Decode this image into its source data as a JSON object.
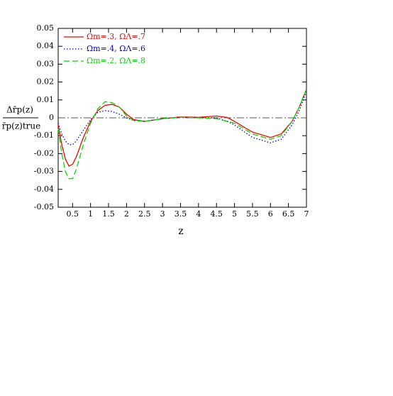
{
  "chart_data": {
    "type": "line",
    "xlabel": "z",
    "ylabel": {
      "numerator": "Δr̄p(z)",
      "denominator": "r̄p(z)true"
    },
    "x": [
      0.1,
      0.2,
      0.3,
      0.4,
      0.5,
      0.6,
      0.8,
      1.0,
      1.2,
      1.4,
      1.6,
      1.8,
      2.0,
      2.2,
      2.5,
      3.0,
      3.5,
      4.0,
      4.5,
      4.8,
      5.0,
      5.5,
      6.0,
      6.3,
      6.6,
      6.8,
      7.0
    ],
    "series": [
      {
        "name": "Ωm=.3, ΩΛ=.7",
        "color": "#ff0000",
        "dash": "none",
        "values": [
          -0.004,
          -0.015,
          -0.023,
          -0.027,
          -0.026,
          -0.022,
          -0.011,
          -0.002,
          0.004,
          0.007,
          0.0075,
          0.006,
          0.002,
          -0.001,
          -0.002,
          -0.0005,
          0.0005,
          0.0003,
          0.001,
          0.0002,
          -0.002,
          -0.008,
          -0.011,
          -0.009,
          -0.002,
          0.006,
          0.016
        ]
      },
      {
        "name": "Ωm=.4, ΩΛ=.6",
        "color": "#0000cc",
        "dash": "1.5 2.5",
        "values": [
          -0.003,
          -0.009,
          -0.013,
          -0.015,
          -0.015,
          -0.013,
          -0.007,
          -0.001,
          0.003,
          0.004,
          0.0035,
          0.002,
          0,
          -0.0015,
          -0.002,
          -0.0005,
          0.0003,
          0,
          0,
          -0.002,
          -0.004,
          -0.011,
          -0.014,
          -0.012,
          -0.004,
          0.004,
          0.015
        ]
      },
      {
        "name": "Ωm=.2, ΩΛ=.8",
        "color": "#00dd00",
        "dash": "8 4",
        "values": [
          -0.006,
          -0.02,
          -0.03,
          -0.034,
          -0.034,
          -0.029,
          -0.015,
          -0.003,
          0.005,
          0.009,
          0.0085,
          0.006,
          0.001,
          -0.0015,
          -0.002,
          -0.0005,
          0.0003,
          0,
          -0.0005,
          -0.002,
          -0.003,
          -0.009,
          -0.012,
          -0.01,
          -0.002,
          0.006,
          0.016
        ]
      }
    ],
    "hline": 0,
    "xlim": [
      0.1,
      7
    ],
    "ylim": [
      -0.05,
      0.05
    ],
    "xticks": [
      0.5,
      1,
      1.5,
      2,
      2.5,
      3,
      3.5,
      4,
      4.5,
      5,
      5.5,
      6,
      6.5,
      7
    ],
    "yticks": [
      0.05,
      0.04,
      0.03,
      0.02,
      0.01,
      0,
      -0.01,
      -0.02,
      -0.03,
      -0.04,
      -0.05
    ]
  }
}
